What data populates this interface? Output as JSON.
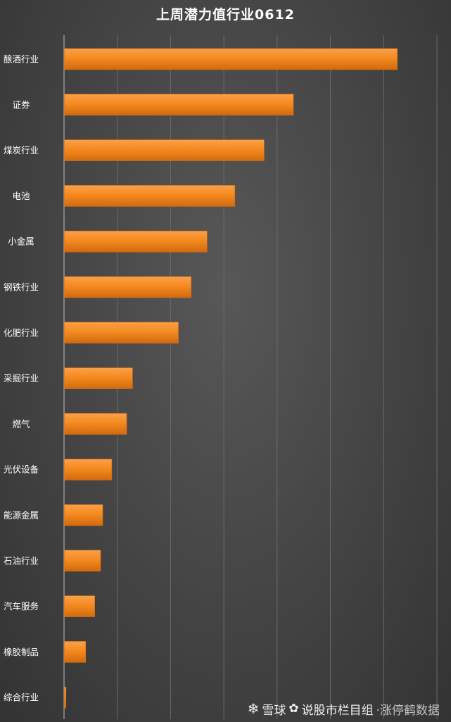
{
  "chart_data": {
    "type": "bar",
    "orientation": "horizontal",
    "title": "上周潜力值行业0612",
    "categories": [
      "酿酒行业",
      "证券",
      "煤炭行业",
      "电池",
      "小金属",
      "钢铁行业",
      "化肥行业",
      "采掘行业",
      "燃气",
      "光伏设备",
      "能源金属",
      "石油行业",
      "汽车服务",
      "橡胶制品",
      "综合行业"
    ],
    "values": [
      62.5,
      43.0,
      37.5,
      32.0,
      26.8,
      23.8,
      21.4,
      12.8,
      11.7,
      8.9,
      7.2,
      6.8,
      5.7,
      4.0,
      0.3
    ],
    "xlim": [
      0,
      70
    ],
    "grid": true,
    "bar_color": "#F58A1F",
    "bar_color_light": "#FAA04A",
    "bar_color_dark": "#D06A0E"
  },
  "watermark": {
    "logo": "雪球",
    "brand": "雪球",
    "text": "说股市栏目组",
    "sub": "·涨停鹤数据"
  }
}
